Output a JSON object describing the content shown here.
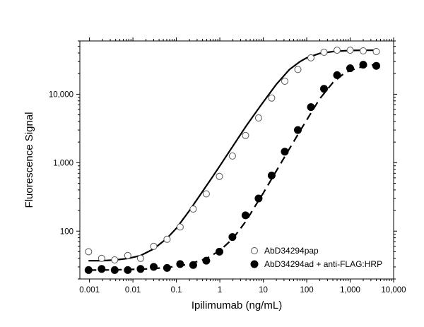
{
  "chart_data": {
    "type": "scatter",
    "xlabel": "Ipilimumab (ng/mL)",
    "ylabel": "Fluorescence Signal",
    "x_scale": "log",
    "y_scale": "log",
    "xlim": [
      0.0006,
      10000
    ],
    "ylim": [
      20,
      60000
    ],
    "x_ticks": [
      0.001,
      0.01,
      0.1,
      1,
      10,
      100,
      1000,
      10000
    ],
    "x_tick_labels": [
      "0.001",
      "0.01",
      "0.1",
      "1",
      "10",
      "100",
      "1,000",
      "10,000"
    ],
    "y_ticks": [
      100,
      1000,
      10000
    ],
    "y_tick_labels": [
      "100",
      "1,000",
      "10,000"
    ],
    "grid": false,
    "legend_position": "bottom-right",
    "series": [
      {
        "name": "AbD34294pap",
        "marker": "open-circle",
        "line": "solid",
        "x": [
          0.00095,
          0.0019,
          0.0038,
          0.0076,
          0.015,
          0.03,
          0.061,
          0.122,
          0.244,
          0.488,
          0.977,
          1.95,
          3.9,
          7.8,
          15.6,
          31.3,
          62.5,
          125,
          250,
          500,
          1000,
          2000,
          4000
        ],
        "y": [
          50,
          40,
          38,
          44,
          40,
          60,
          76,
          115,
          210,
          350,
          630,
          1250,
          2500,
          4500,
          8800,
          15500,
          23000,
          34000,
          41000,
          44000,
          44000,
          43000,
          42000
        ],
        "fit_x": [
          0.00095,
          0.002,
          0.004,
          0.008,
          0.015,
          0.03,
          0.06,
          0.1,
          0.2,
          0.4,
          0.7,
          1,
          2,
          4,
          7,
          10,
          20,
          40,
          70,
          100,
          200,
          400,
          700,
          1000,
          2000,
          4000
        ],
        "fit_y": [
          37,
          37,
          38,
          40,
          44,
          55,
          78,
          110,
          200,
          380,
          640,
          900,
          1750,
          3400,
          5600,
          7700,
          14000,
          23000,
          30000,
          34000,
          39500,
          42000,
          43000,
          43500,
          43800,
          44000
        ]
      },
      {
        "name": "AbD34294ad + anti-FLAG:HRP",
        "marker": "filled-circle",
        "line": "dashed",
        "x": [
          0.00095,
          0.0019,
          0.0038,
          0.0076,
          0.015,
          0.03,
          0.061,
          0.122,
          0.244,
          0.488,
          0.977,
          1.95,
          3.9,
          7.8,
          15.6,
          31.3,
          62.5,
          125,
          250,
          500,
          1000,
          2000,
          4000
        ],
        "y": [
          27,
          28,
          27,
          27,
          28,
          30,
          29,
          33,
          32,
          37,
          50,
          82,
          170,
          300,
          650,
          1450,
          3000,
          6500,
          12000,
          19000,
          24000,
          27000,
          26000
        ],
        "fit_x": [
          0.00095,
          0.002,
          0.005,
          0.01,
          0.03,
          0.1,
          0.2,
          0.5,
          1,
          2,
          4,
          7,
          10,
          20,
          40,
          70,
          100,
          200,
          400,
          700,
          1000,
          2000,
          4000
        ],
        "fit_y": [
          27,
          27,
          27.3,
          27.6,
          28.3,
          30.5,
          33,
          40,
          52,
          78,
          140,
          250,
          360,
          760,
          1600,
          2900,
          4200,
          8600,
          14800,
          19800,
          22200,
          25500,
          27200
        ]
      }
    ]
  }
}
